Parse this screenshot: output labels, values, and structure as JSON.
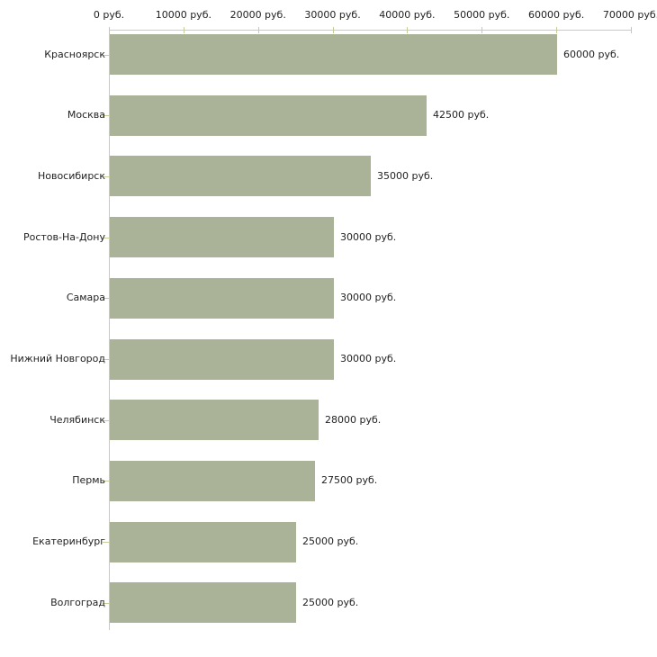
{
  "chart_data": {
    "type": "bar",
    "orientation": "horizontal",
    "title": "",
    "xlabel": "",
    "ylabel": "",
    "unit": "руб.",
    "categories": [
      "Красноярск",
      "Москва",
      "Новосибирск",
      "Ростов-На-Дону",
      "Самара",
      "Нижний Новгород",
      "Челябинск",
      "Пермь",
      "Екатеринбург",
      "Волгоград"
    ],
    "values": [
      60000,
      42500,
      35000,
      30000,
      30000,
      30000,
      28000,
      27500,
      25000,
      25000
    ],
    "value_labels": [
      "60000 руб.",
      "42500 руб.",
      "35000 руб.",
      "30000 руб.",
      "30000 руб.",
      "30000 руб.",
      "28000 руб.",
      "27500 руб.",
      "25000 руб.",
      "25000 руб."
    ],
    "x_ticks": [
      0,
      10000,
      20000,
      30000,
      40000,
      50000,
      60000,
      70000
    ],
    "x_tick_labels": [
      "0 руб.",
      "10000 руб.",
      "20000 руб.",
      "30000 руб.",
      "40000 руб.",
      "50000 руб.",
      "60000 руб.",
      "70000 руб."
    ],
    "xlim": [
      0,
      70000
    ],
    "grid": false,
    "legend": null,
    "axis_position": "top",
    "colors": {
      "bar": "#aab298",
      "axis": "#c9c9c9",
      "tick": "#c6cc9a",
      "text": "#222222",
      "background": "#ffffff"
    }
  }
}
